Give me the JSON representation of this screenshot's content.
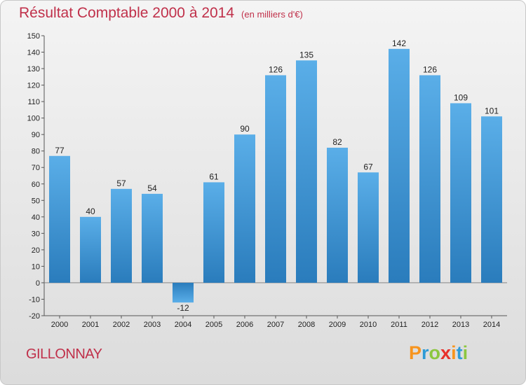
{
  "title": "Résultat Comptable 2000 à 2014",
  "unit": "(en milliers d'€)",
  "commune": "GILLONNAY",
  "logo": {
    "letters": [
      "P",
      "r",
      "o",
      "x",
      "i",
      "t",
      "i"
    ],
    "colors": [
      "#f7941d",
      "#2e9bd6",
      "#8cc63f",
      "#e8302b",
      "#f7941d",
      "#2e9bd6",
      "#8cc63f"
    ]
  },
  "chart_data": {
    "type": "bar",
    "title": "Résultat Comptable 2000 à 2014",
    "subtitle": "(en milliers d'€)",
    "categories": [
      "2000",
      "2001",
      "2002",
      "2003",
      "2004",
      "2005",
      "2006",
      "2007",
      "2008",
      "2009",
      "2010",
      "2011",
      "2012",
      "2013",
      "2014"
    ],
    "values": [
      77,
      40,
      57,
      54,
      -12,
      61,
      90,
      126,
      135,
      82,
      67,
      142,
      126,
      109,
      101
    ],
    "data_labels": [
      "77",
      "40",
      "57",
      "54",
      "-12",
      "61",
      "90",
      "126",
      "135",
      "82",
      "67",
      "142",
      "126",
      "109",
      "101"
    ],
    "yticks": [
      "-20",
      "-10",
      "0",
      "10",
      "20",
      "30",
      "40",
      "50",
      "60",
      "70",
      "80",
      "90",
      "100",
      "110",
      "120",
      "130",
      "140",
      "150"
    ],
    "ylim": [
      -20,
      150
    ],
    "grid": false,
    "bar_color_top": "#5aaee8",
    "bar_color_bottom": "#2a7cbc"
  }
}
